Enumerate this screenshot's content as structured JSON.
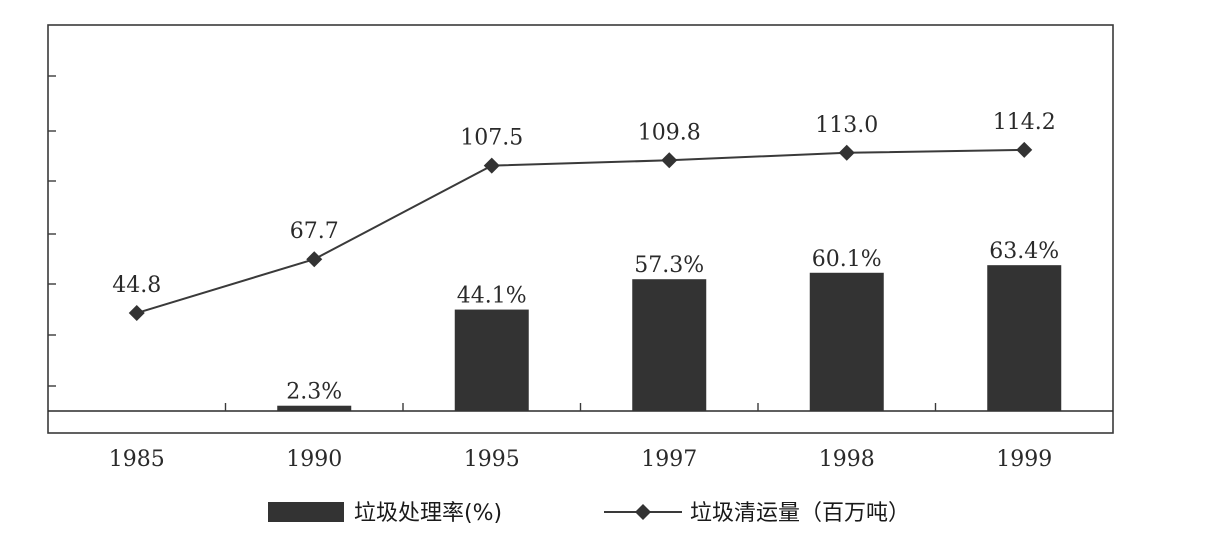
{
  "chart_data": {
    "type": "bar",
    "categories": [
      "1985",
      "1990",
      "1995",
      "1997",
      "1998",
      "1999"
    ],
    "series": [
      {
        "name": "垃圾处理率(%)",
        "type": "bar",
        "values": [
          null,
          2.3,
          44.1,
          57.3,
          60.1,
          63.4
        ],
        "labels": [
          "",
          "2.3%",
          "44.1%",
          "57.3%",
          "60.1%",
          "63.4%"
        ],
        "color": "#333333"
      },
      {
        "name": "垃圾清运量（百万吨）",
        "type": "line",
        "values": [
          44.8,
          67.7,
          107.5,
          109.8,
          113.0,
          114.2
        ],
        "labels": [
          "44.8",
          "67.7",
          "107.5",
          "109.8",
          "113.0",
          "114.2"
        ],
        "color": "#3a3a3a"
      }
    ],
    "legend_position": "bottom",
    "grid": false
  }
}
